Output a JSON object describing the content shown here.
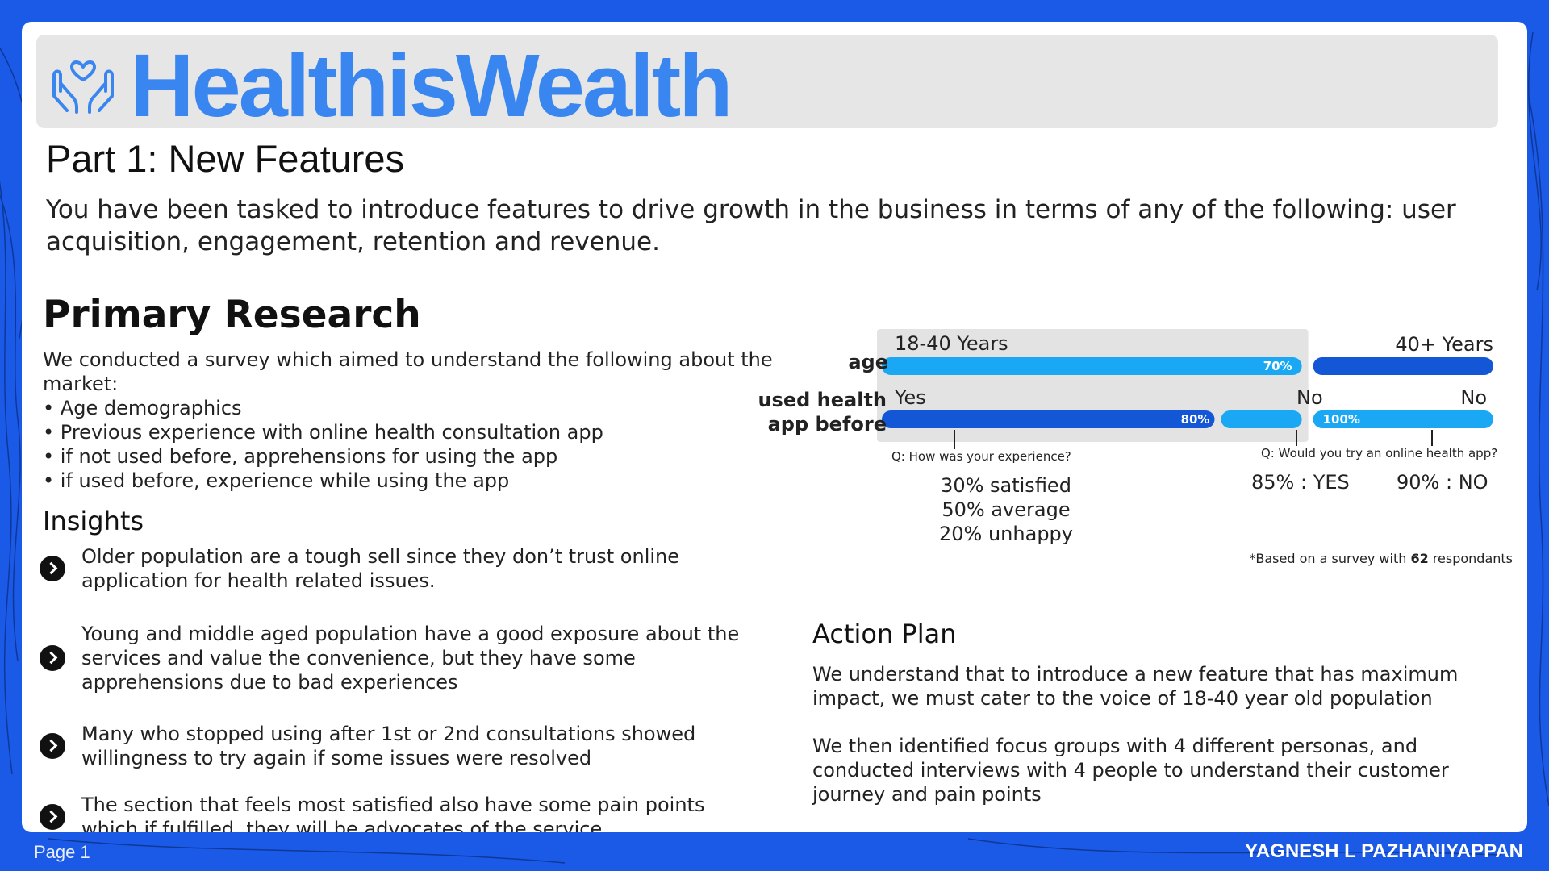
{
  "brand": {
    "logo_icon": "hands-heart-icon",
    "name": "HealthisWealth",
    "color": "#3a86f0"
  },
  "part_title": "Part 1: New Features",
  "intro": "You have been tasked to introduce features to drive growth in the business in terms of any of the following: user acquisition, engagement, retention and revenue.",
  "primary_research": {
    "heading": "Primary Research",
    "survey_lines": [
      "We conducted a survey which aimed to understand the following about the market:",
      "• Age demographics",
      "• Previous experience with online health consultation app",
      "• if not used before, apprehensions for using the app",
      "• if used before, experience while using the app"
    ]
  },
  "insights": {
    "heading": "Insights",
    "items": [
      "Older population are a tough sell since they don’t trust online application for health related issues.",
      "Young and middle aged population have a good exposure about the services and value the convenience, but they have some apprehensions due to bad experiences",
      "Many who stopped using after 1st or 2nd consultations showed willingness to try again if some issues were resolved",
      "The section that feels most satisfied also have some pain points which if fulfilled, they will be advocates of the service."
    ]
  },
  "chart_data": {
    "type": "bar",
    "orientation": "horizontal",
    "rows": [
      {
        "label": "age",
        "segments": [
          {
            "name": "18-40 Years",
            "value": 70,
            "value_label": "70%"
          },
          {
            "name": "40+ Years",
            "value": 30,
            "value_label": ""
          }
        ]
      },
      {
        "label": "used health app before",
        "label_lines": [
          "used health",
          "app before"
        ],
        "groups": [
          {
            "group": "18-40 Years",
            "segments": [
              {
                "name": "Yes",
                "value": 80,
                "value_label": "80%"
              },
              {
                "name": "No",
                "value": 20,
                "value_label": ""
              }
            ]
          },
          {
            "group": "40+ Years",
            "segments": [
              {
                "name": "No",
                "value": 100,
                "value_label": "100%"
              }
            ]
          }
        ]
      }
    ],
    "annotations": [
      {
        "question": "Q: How was your experience?",
        "answers": [
          "30% satisfied",
          "50% average",
          "20% unhappy"
        ]
      },
      {
        "question": "Q: Would you try an online health app?",
        "answers": [
          "85% : YES",
          "90% : NO"
        ]
      }
    ],
    "footnote_prefix": "*Based on a survey with ",
    "footnote_count": "62",
    "footnote_suffix": " respondants",
    "colors": {
      "light": "#1aa8f5",
      "dark": "#1457d6",
      "highlight_bg": "#e3e3e3"
    }
  },
  "action_plan": {
    "heading": "Action Plan",
    "paragraphs": [
      "We understand that to introduce a new feature that has maximum impact, we must cater to the voice of 18-40 year old population",
      "We then identified focus groups with 4 different personas, and conducted interviews with 4 people to understand their customer journey and pain points"
    ]
  },
  "footer": {
    "page": "Page 1",
    "author": "YAGNESH L PAZHANIYAPPAN"
  }
}
